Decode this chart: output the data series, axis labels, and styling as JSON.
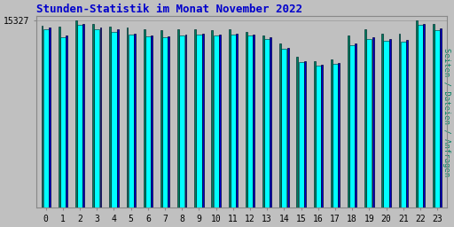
{
  "title": "Stunden-Statistik im Monat November 2022",
  "ylabel": "Seiten / Dateien / Anfragen",
  "xlabel_ticks": [
    0,
    1,
    2,
    3,
    4,
    5,
    6,
    7,
    8,
    9,
    10,
    11,
    12,
    13,
    14,
    15,
    16,
    17,
    18,
    19,
    20,
    21,
    22,
    23
  ],
  "background_color": "#c0c0c0",
  "plot_bg_color": "#c0c0c0",
  "bar_color_cyan": "#00ffff",
  "bar_color_teal": "#008060",
  "bar_color_blue": "#0000cc",
  "title_color": "#0000cc",
  "ylabel_color": "#008060",
  "ytick_label": "15327",
  "ytick_val": 15327,
  "ylim_max": 15700,
  "bar_gap": 0.02,
  "values_cyan": [
    14600,
    14000,
    15000,
    14600,
    14450,
    14200,
    14050,
    13950,
    14100,
    14200,
    14100,
    14200,
    14100,
    13850,
    13000,
    11950,
    11650,
    11800,
    13350,
    13850,
    13700,
    13650,
    15000,
    14550
  ],
  "values_teal": [
    14900,
    14850,
    15327,
    15050,
    14850,
    14750,
    14650,
    14550,
    14650,
    14650,
    14550,
    14650,
    14450,
    14150,
    13450,
    12350,
    12050,
    12150,
    14100,
    14600,
    14300,
    14300,
    15327,
    15050
  ],
  "values_blue": [
    14750,
    14100,
    15100,
    14800,
    14600,
    14300,
    14150,
    14050,
    14200,
    14300,
    14200,
    14300,
    14200,
    13950,
    13100,
    12050,
    11750,
    11900,
    13500,
    13950,
    13800,
    13750,
    15100,
    14700
  ]
}
